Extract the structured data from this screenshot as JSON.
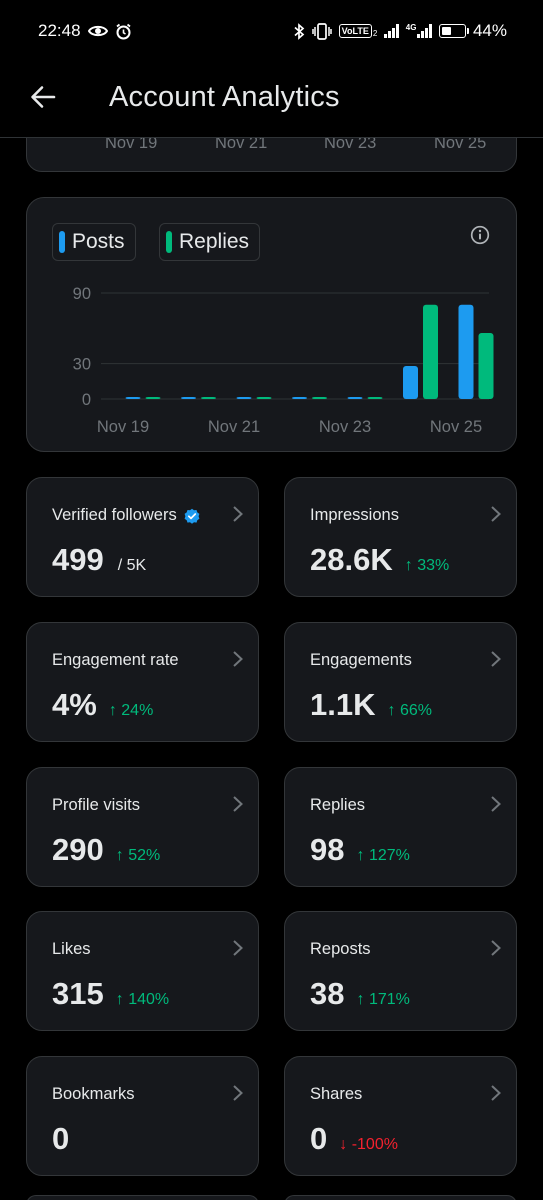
{
  "status_bar": {
    "time": "22:48",
    "network": "4G",
    "volte": "VoLTE",
    "volte_sub": "2",
    "battery_percent": "44%",
    "battery_level": 0.44
  },
  "header": {
    "title": "Account Analytics"
  },
  "top_chart_partial": {
    "tick_labels": [
      "Nov 19",
      "Nov 21",
      "Nov 23",
      "Nov 25"
    ]
  },
  "legend": {
    "posts": "Posts",
    "replies": "Replies"
  },
  "colors": {
    "posts": "#1d9bf0",
    "replies": "#00ba7c",
    "positive": "#00ba7c",
    "negative": "#f4212e"
  },
  "chart_data": {
    "type": "bar",
    "x": [
      "Nov 19",
      "Nov 20",
      "Nov 21",
      "Nov 22",
      "Nov 23",
      "Nov 24",
      "Nov 25"
    ],
    "x_tick_labels": [
      "Nov 19",
      "Nov 21",
      "Nov 23",
      "Nov 25"
    ],
    "series": [
      {
        "name": "Posts",
        "values": [
          0,
          0,
          0,
          0,
          1,
          28,
          80
        ]
      },
      {
        "name": "Replies",
        "values": [
          0,
          0,
          0,
          0,
          1,
          80,
          56
        ]
      }
    ],
    "y_ticks": [
      0,
      30,
      90
    ],
    "ylim": [
      0,
      90
    ],
    "grid": true,
    "legend": "top-left"
  },
  "metrics": [
    {
      "label": "Verified followers",
      "value": "499",
      "sub": "/ 5K",
      "change": "",
      "direction": "",
      "verified": true
    },
    {
      "label": "Impressions",
      "value": "28.6K",
      "sub": "",
      "change": "33%",
      "direction": "up",
      "verified": false
    },
    {
      "label": "Engagement rate",
      "value": "4%",
      "sub": "",
      "change": "24%",
      "direction": "up",
      "verified": false
    },
    {
      "label": "Engagements",
      "value": "1.1K",
      "sub": "",
      "change": "66%",
      "direction": "up",
      "verified": false
    },
    {
      "label": "Profile visits",
      "value": "290",
      "sub": "",
      "change": "52%",
      "direction": "up",
      "verified": false
    },
    {
      "label": "Replies",
      "value": "98",
      "sub": "",
      "change": "127%",
      "direction": "up",
      "verified": false
    },
    {
      "label": "Likes",
      "value": "315",
      "sub": "",
      "change": "140%",
      "direction": "up",
      "verified": false
    },
    {
      "label": "Reposts",
      "value": "38",
      "sub": "",
      "change": "171%",
      "direction": "up",
      "verified": false
    },
    {
      "label": "Bookmarks",
      "value": "0",
      "sub": "",
      "change": "",
      "direction": "",
      "verified": false
    },
    {
      "label": "Shares",
      "value": "0",
      "sub": "",
      "change": "-100%",
      "direction": "down",
      "verified": false
    }
  ]
}
